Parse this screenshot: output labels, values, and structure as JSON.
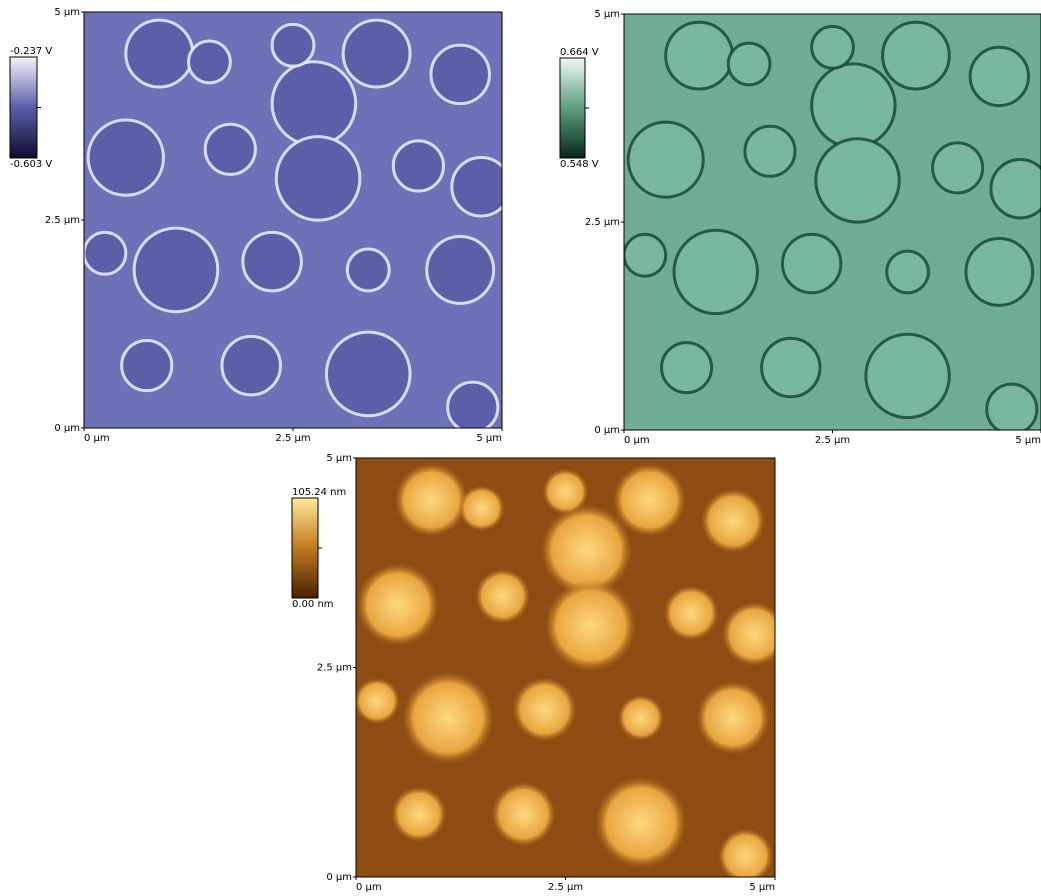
{
  "panels": [
    {
      "y_ticks": [
        "5 µm",
        "2.5 µm",
        "0 µm"
      ],
      "x_ticks": [
        "0 µm",
        "2.5 µm",
        "5 µm"
      ],
      "colorbar": {
        "max": "-0.237 V",
        "min": "-0.603 V"
      }
    },
    {
      "y_ticks": [
        "5 µm",
        "2.5 µm",
        "0 µm"
      ],
      "x_ticks": [
        "0 µm",
        "2.5 µm",
        "5 µm"
      ],
      "colorbar": {
        "max": "0.664 V",
        "min": "0.548 V"
      }
    },
    {
      "y_ticks": [
        "5 µm",
        "2.5 µm",
        "0 µm"
      ],
      "x_ticks": [
        "0 µm",
        "2.5 µm",
        "5 µm"
      ],
      "colorbar": {
        "max": "105.24 nm",
        "min": "0.00 nm"
      }
    }
  ]
}
